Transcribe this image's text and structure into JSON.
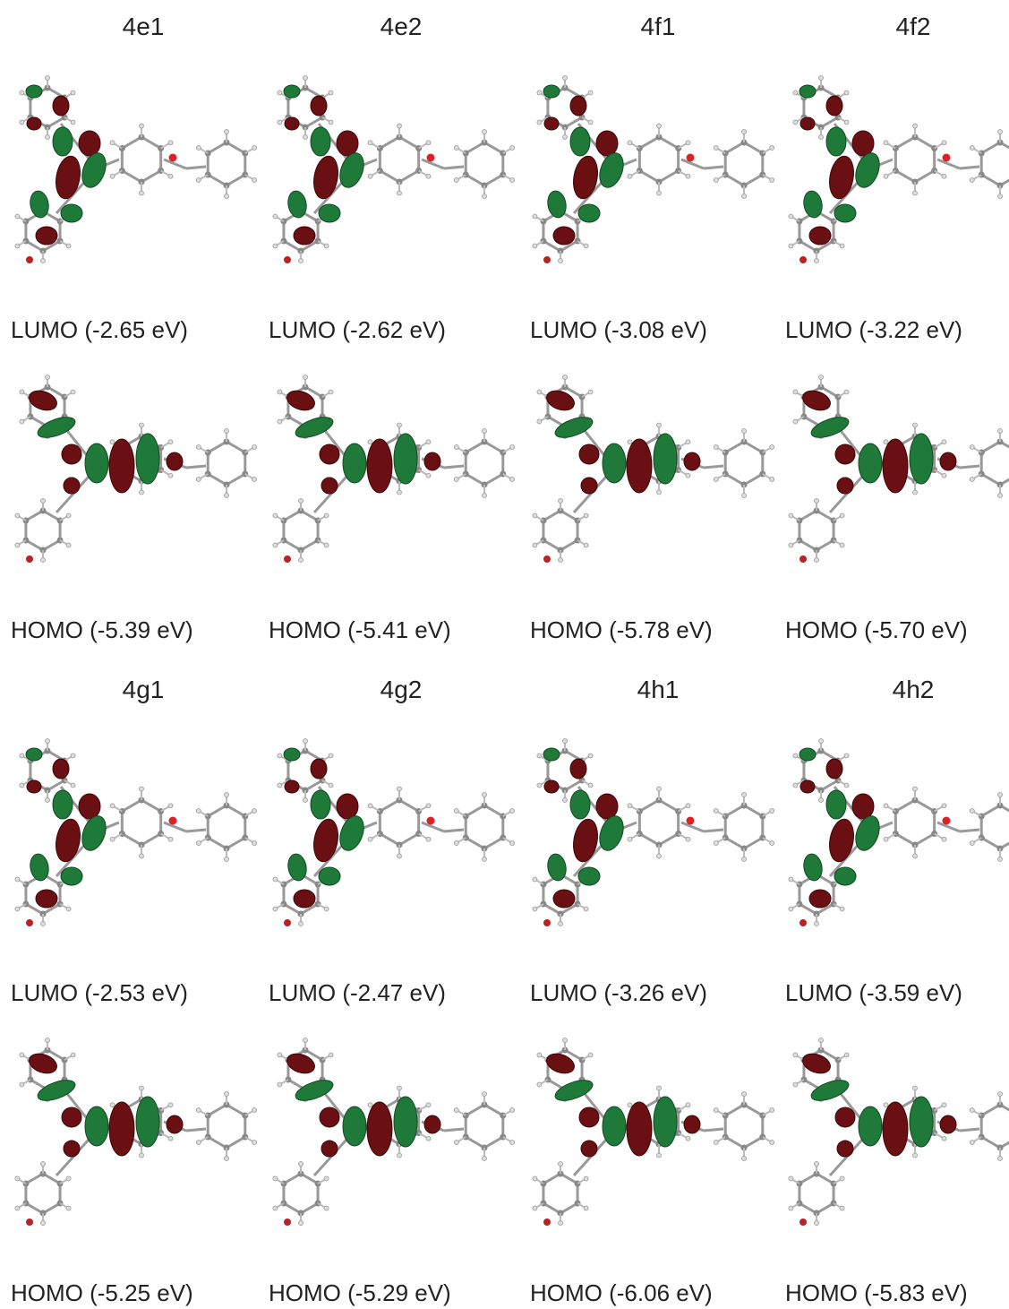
{
  "groups": [
    {
      "compounds": [
        "4e1",
        "4e2",
        "4f1",
        "4f2"
      ],
      "lumo": [
        "LUMO (-2.65 eV)",
        "LUMO (-2.62 eV)",
        "LUMO (-3.08 eV)",
        "LUMO (-3.22 eV)"
      ],
      "homo": [
        "HOMO (-5.39 eV)",
        "HOMO (-5.41 eV)",
        "HOMO (-5.78 eV)",
        "HOMO (-5.70 eV)"
      ]
    },
    {
      "compounds": [
        "4g1",
        "4g2",
        "4h1",
        "4h2"
      ],
      "lumo": [
        "LUMO (-2.53 eV)",
        "LUMO (-2.47 eV)",
        "LUMO (-3.26 eV)",
        "LUMO (-3.59 eV)"
      ],
      "homo": [
        "HOMO (-5.25 eV)",
        "HOMO (-5.29 eV)",
        "HOMO (-6.06 eV)",
        "HOMO (-5.83 eV)"
      ]
    }
  ]
}
